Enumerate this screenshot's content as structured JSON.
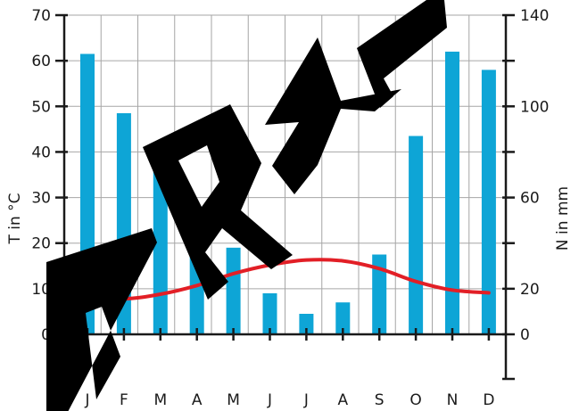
{
  "chart_data": {
    "type": "bar",
    "categories": [
      "J",
      "F",
      "M",
      "A",
      "M",
      "J",
      "J",
      "A",
      "S",
      "O",
      "N",
      "D"
    ],
    "series": [
      {
        "type": "bar",
        "axis": "right",
        "values": [
          123,
          97,
          84,
          52,
          38,
          18,
          9,
          14,
          35,
          87,
          124,
          116
        ]
      },
      {
        "type": "line",
        "axis": "left",
        "values": [
          8.7,
          7.8,
          8.8,
          10.7,
          13.3,
          15.2,
          16.3,
          16.1,
          14.4,
          11.6,
          9.7,
          9.1
        ]
      }
    ],
    "left_axis": {
      "label": "T in °C",
      "ticks": [
        0,
        10,
        20,
        30,
        40,
        50,
        60,
        70
      ],
      "range": [
        0,
        70
      ]
    },
    "right_axis": {
      "label": "N in mm",
      "ticks": [
        0,
        20,
        60,
        100,
        140
      ],
      "range": [
        0,
        140
      ]
    },
    "grid": true,
    "watermark": "ORAL",
    "colors": {
      "bars": "#0ea5d6",
      "line": "#e21f26",
      "grid": "#a6a6a6",
      "axis": "#1a1a1a",
      "watermark": "#000000"
    }
  }
}
